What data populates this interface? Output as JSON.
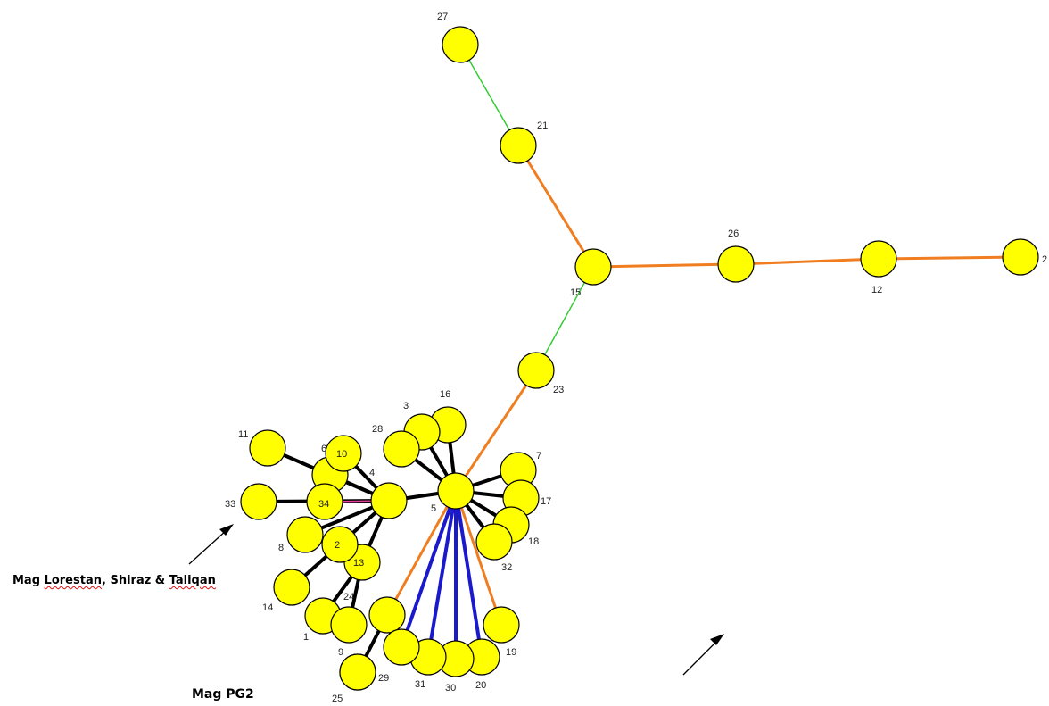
{
  "annotations": {
    "lorestan": {
      "prefix": "Mag ",
      "word1": "Lorestan",
      "sep1": ", ",
      "word2": "Shiraz",
      "sep2": " & ",
      "word3": "Taliqan"
    },
    "pg2": "Mag PG2"
  },
  "colors": {
    "node_fill": "#ffff00",
    "node_stroke": "#000000",
    "edge_black": "#000000",
    "edge_orange": "#f07e20",
    "edge_blue": "#1a1acc",
    "edge_green": "#33cc33",
    "edge_pink": "#e0409a"
  },
  "nodes": [
    {
      "id": "1",
      "label": "1"
    },
    {
      "id": "2",
      "label": "2"
    },
    {
      "id": "3",
      "label": "3"
    },
    {
      "id": "4",
      "label": "4"
    },
    {
      "id": "5",
      "label": "5"
    },
    {
      "id": "6",
      "label": "6"
    },
    {
      "id": "7",
      "label": "7"
    },
    {
      "id": "8",
      "label": "8"
    },
    {
      "id": "9",
      "label": "9"
    },
    {
      "id": "10",
      "label": "10"
    },
    {
      "id": "11",
      "label": "11"
    },
    {
      "id": "12",
      "label": "12"
    },
    {
      "id": "13",
      "label": "13"
    },
    {
      "id": "14",
      "label": "14"
    },
    {
      "id": "15",
      "label": "15"
    },
    {
      "id": "16",
      "label": "16"
    },
    {
      "id": "17",
      "label": "17"
    },
    {
      "id": "18",
      "label": "18"
    },
    {
      "id": "19",
      "label": "19"
    },
    {
      "id": "20",
      "label": "20"
    },
    {
      "id": "21",
      "label": "21"
    },
    {
      "id": "22",
      "label": "2"
    },
    {
      "id": "23",
      "label": "23"
    },
    {
      "id": "24",
      "label": "24"
    },
    {
      "id": "25",
      "label": "25"
    },
    {
      "id": "26",
      "label": "26"
    },
    {
      "id": "27",
      "label": "27"
    },
    {
      "id": "28",
      "label": "28"
    },
    {
      "id": "29",
      "label": "29"
    },
    {
      "id": "30",
      "label": "30"
    },
    {
      "id": "31",
      "label": "31"
    },
    {
      "id": "32",
      "label": "32"
    },
    {
      "id": "33",
      "label": "33"
    },
    {
      "id": "34",
      "label": "34"
    }
  ],
  "edges": [
    {
      "from": "27",
      "to": "21",
      "color": "green"
    },
    {
      "from": "21",
      "to": "15",
      "color": "orange"
    },
    {
      "from": "15",
      "to": "26",
      "color": "orange"
    },
    {
      "from": "26",
      "to": "12",
      "color": "orange"
    },
    {
      "from": "12",
      "to": "22",
      "color": "orange"
    },
    {
      "from": "15",
      "to": "23",
      "color": "green"
    },
    {
      "from": "23",
      "to": "5",
      "color": "orange"
    },
    {
      "from": "5",
      "to": "16",
      "color": "black"
    },
    {
      "from": "5",
      "to": "3",
      "color": "black"
    },
    {
      "from": "5",
      "to": "28",
      "color": "black"
    },
    {
      "from": "5",
      "to": "7",
      "color": "black"
    },
    {
      "from": "5",
      "to": "17",
      "color": "black"
    },
    {
      "from": "5",
      "to": "18",
      "color": "black"
    },
    {
      "from": "5",
      "to": "32",
      "color": "black"
    },
    {
      "from": "5",
      "to": "4",
      "color": "black"
    },
    {
      "from": "5",
      "to": "29",
      "color": "orange"
    },
    {
      "from": "5",
      "to": "19",
      "color": "orange"
    },
    {
      "from": "5",
      "to": "31",
      "color": "blue"
    },
    {
      "from": "5",
      "to": "30",
      "color": "blue"
    },
    {
      "from": "5",
      "to": "20",
      "color": "blue"
    },
    {
      "from": "5",
      "to": "29b",
      "color": "blue"
    },
    {
      "from": "4",
      "to": "10",
      "color": "black"
    },
    {
      "from": "4",
      "to": "6",
      "color": "black"
    },
    {
      "from": "4",
      "to": "11",
      "color": "black"
    },
    {
      "from": "4",
      "to": "33",
      "color": "black"
    },
    {
      "from": "4",
      "to": "8",
      "color": "black"
    },
    {
      "from": "4",
      "to": "2",
      "color": "black"
    },
    {
      "from": "4",
      "to": "13",
      "color": "black"
    },
    {
      "from": "4",
      "to": "34",
      "color": "pink"
    },
    {
      "from": "2",
      "to": "14",
      "color": "black"
    },
    {
      "from": "13",
      "to": "1",
      "color": "black"
    },
    {
      "from": "13",
      "to": "24",
      "color": "black"
    },
    {
      "from": "29",
      "to": "25",
      "color": "black"
    }
  ]
}
